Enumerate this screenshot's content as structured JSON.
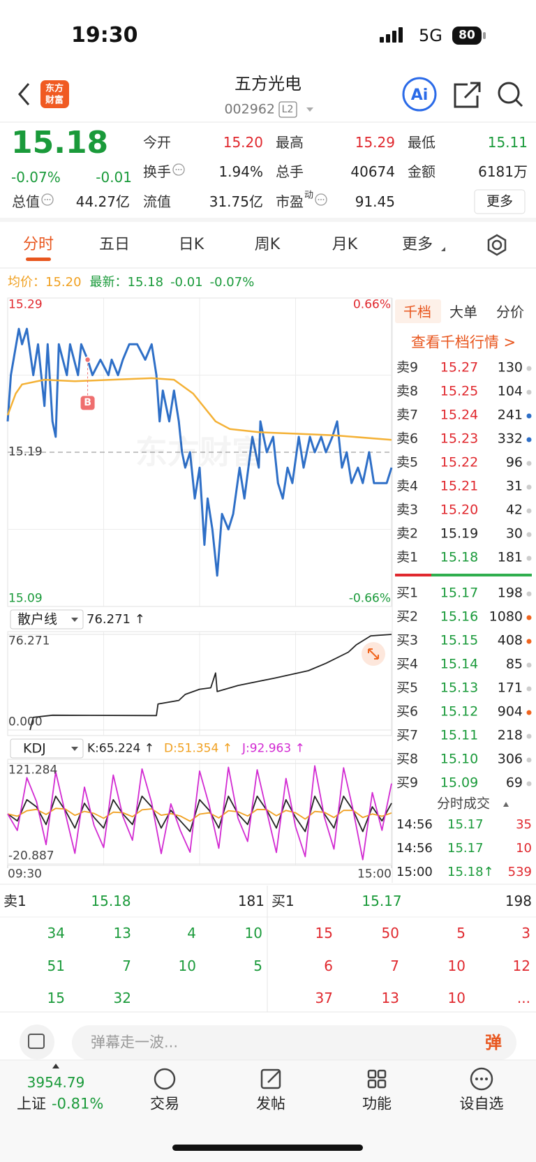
{
  "status_bar": {
    "time": "19:30",
    "network": "5G",
    "battery": "80"
  },
  "header": {
    "logo": [
      "东方",
      "财富"
    ],
    "title": "五方光电",
    "code": "002962",
    "level": "L2"
  },
  "quote": {
    "price": "15.18",
    "change_pct": "-0.07%",
    "change": "-0.01",
    "more": "更多",
    "stats": [
      {
        "label": "今开",
        "value": "15.20",
        "color": "#e0282e"
      },
      {
        "label": "最高",
        "value": "15.29",
        "color": "#e0282e"
      },
      {
        "label": "最低",
        "value": "15.11",
        "color": "#1a9a3a"
      },
      {
        "label": "换手",
        "value": "1.94%",
        "color": "#222222"
      },
      {
        "label": "总手",
        "value": "40674",
        "color": "#222222"
      },
      {
        "label": "金额",
        "value": "6181万",
        "color": "#222222"
      },
      {
        "label": "总值",
        "value": "44.27亿",
        "color": "#222222"
      },
      {
        "label": "流值",
        "value": "31.75亿",
        "color": "#222222"
      },
      {
        "label": "市盈",
        "sup": "动",
        "value": "91.45",
        "color": "#222222"
      }
    ]
  },
  "tabs": {
    "items": [
      "分时",
      "五日",
      "日K",
      "周K",
      "月K",
      "更多"
    ],
    "active": 0
  },
  "legend": {
    "avg_label": "均价：",
    "avg": "15.20",
    "last_label": "最新：",
    "last": "15.18",
    "change": "-0.01",
    "change_pct": "-0.07%"
  },
  "chart_data": [
    {
      "type": "line",
      "watermark": "东方财富",
      "grid": true,
      "xlim": [
        0,
        240
      ],
      "ylim": [
        15.09,
        15.29
      ],
      "yticks": [
        15.09,
        15.19,
        15.29
      ],
      "y2lim": [
        -0.66,
        0.66
      ],
      "y2ticks": [
        {
          "value": -0.66,
          "label": "-0.66%"
        },
        {
          "value": 0.66,
          "label": "0.66%"
        }
      ],
      "series": [
        {
          "color": "#2e6fc7",
          "x": [
            0,
            2,
            7,
            9,
            12,
            16,
            19,
            23,
            25,
            28,
            30,
            32,
            37,
            39,
            44,
            46,
            50,
            53,
            58,
            63,
            65,
            69,
            72,
            76,
            81,
            86,
            90,
            93,
            95,
            97,
            101,
            104,
            107,
            109,
            111,
            114,
            117,
            120,
            123,
            125,
            128,
            131,
            134,
            138,
            141,
            145,
            148,
            153,
            157,
            158,
            162,
            166,
            169,
            172,
            175,
            178,
            182,
            185,
            189,
            192,
            196,
            199,
            203,
            206,
            209,
            212,
            215,
            219,
            222,
            226,
            229,
            234,
            237,
            240
          ],
          "values": [
            15.21,
            15.24,
            15.27,
            15.26,
            15.27,
            15.24,
            15.26,
            15.22,
            15.26,
            15.21,
            15.2,
            15.26,
            15.24,
            15.26,
            15.24,
            15.26,
            15.25,
            15.24,
            15.25,
            15.24,
            15.25,
            15.24,
            15.25,
            15.26,
            15.26,
            15.25,
            15.26,
            15.24,
            15.21,
            15.23,
            15.21,
            15.23,
            15.21,
            15.19,
            15.18,
            15.19,
            15.16,
            15.18,
            15.13,
            15.16,
            15.14,
            15.11,
            15.15,
            15.14,
            15.15,
            15.18,
            15.16,
            15.2,
            15.18,
            15.21,
            15.19,
            15.2,
            15.17,
            15.16,
            15.18,
            15.17,
            15.2,
            15.18,
            15.2,
            15.19,
            15.2,
            15.19,
            15.2,
            15.21,
            15.18,
            15.19,
            15.17,
            15.18,
            15.17,
            15.19,
            15.17,
            15.17,
            15.17,
            15.18
          ]
        },
        {
          "color": "#f4b135",
          "x": [
            0,
            5,
            9,
            23,
            42,
            65,
            90,
            104,
            116,
            130,
            139,
            157,
            181,
            204,
            240
          ],
          "values": [
            15.214,
            15.228,
            15.234,
            15.237,
            15.236,
            15.237,
            15.238,
            15.237,
            15.228,
            15.21,
            15.205,
            15.203,
            15.202,
            15.201,
            15.198
          ]
        }
      ],
      "markers": [
        {
          "x": 50,
          "y": 15.25,
          "label": "B",
          "color": "#ef6f6f"
        }
      ]
    },
    {
      "type": "line",
      "indicator": "散户线",
      "readout": "76.271 ↑",
      "xlim": [
        0,
        240
      ],
      "ylim": [
        0,
        76.271
      ],
      "yticks": [
        {
          "value": 0,
          "label": "0.000"
        },
        76.271
      ],
      "series": [
        {
          "color": "#222222",
          "x": [
            14,
            16,
            28,
            93,
            94,
            107,
            111,
            120,
            127,
            130,
            131,
            144,
            167,
            188,
            199,
            213,
            218,
            227,
            240
          ],
          "values": [
            0,
            10.05,
            11.8,
            11.5,
            20.7,
            23.6,
            28.4,
            32.5,
            33.7,
            45.5,
            30.7,
            35.5,
            41.4,
            47.3,
            53.2,
            62.1,
            68,
            75.1,
            76.271
          ]
        }
      ]
    },
    {
      "type": "line",
      "indicator": "KDJ",
      "xlim": [
        0,
        240
      ],
      "xticks": [
        {
          "value": 0,
          "label": "09:30"
        },
        {
          "value": 240,
          "label": "15:00"
        }
      ],
      "ylim": [
        -20.887,
        121.284
      ],
      "yticks": [
        -20.887,
        121.284
      ],
      "x": [
        0,
        6,
        12,
        18,
        24,
        30,
        36,
        42,
        48,
        54,
        60,
        66,
        72,
        78,
        84,
        90,
        96,
        102,
        108,
        114,
        120,
        126,
        132,
        138,
        144,
        150,
        156,
        162,
        168,
        174,
        180,
        186,
        192,
        198,
        204,
        210,
        216,
        222,
        228,
        234,
        240
      ],
      "series": [
        {
          "readout": "K:65.224 ↑",
          "color": "#222222",
          "values": [
            50,
            40,
            70,
            60,
            35,
            75,
            55,
            30,
            65,
            45,
            30,
            70,
            50,
            35,
            75,
            60,
            30,
            55,
            40,
            25,
            70,
            55,
            30,
            75,
            50,
            35,
            75,
            55,
            30,
            70,
            45,
            25,
            75,
            50,
            30,
            75,
            55,
            25,
            60,
            40,
            65.224
          ]
        },
        {
          "readout": "D:51.354 ↑",
          "color": "#f0a020",
          "values": [
            50,
            46.7,
            54.4,
            56.3,
            49.2,
            57.8,
            56.9,
            47.9,
            53.6,
            50.7,
            43.8,
            52.5,
            51.7,
            46.1,
            55.7,
            57.1,
            48.1,
            50.4,
            46.9,
            39.6,
            49.7,
            51.5,
            44.3,
            54.5,
            53,
            47,
            56.3,
            55.9,
            47.3,
            54.9,
            51.6,
            42.7,
            53.5,
            52.3,
            44.9,
            54.9,
            54.9,
            44.9,
            49.9,
            46.6,
            51.354
          ]
        },
        {
          "readout": "J:92.963 ↑",
          "color": "#d22ad2",
          "values": [
            50,
            26.6,
            101.2,
            67.4,
            6.6,
            109.4,
            51.2,
            -5.8,
            87.8,
            33.6,
            2.4,
            105,
            46.6,
            12.8,
            113.6,
            65.8,
            -6.2,
            64.2,
            26.2,
            -4.2,
            110.6,
            62,
            1.4,
            116,
            44,
            11,
            112.4,
            53.2,
            -4.6,
            100.2,
            31.8,
            -10.4,
            118,
            45.4,
            0.2,
            115.2,
            55.2,
            -14.8,
            80.2,
            26.8,
            92.963
          ]
        }
      ]
    }
  ],
  "order_book": {
    "tabs": [
      "千档",
      "大单",
      "分价"
    ],
    "active_tab": 0,
    "link": "查看千档行情 >",
    "asks": [
      {
        "label": "卖9",
        "price": "15.27",
        "volume": 130,
        "price_color": "#e0282e",
        "dot": "#cccccc"
      },
      {
        "label": "卖8",
        "price": "15.25",
        "volume": 104,
        "price_color": "#e0282e",
        "dot": "#cccccc"
      },
      {
        "label": "卖7",
        "price": "15.24",
        "volume": 241,
        "price_color": "#e0282e",
        "dot": "#2e6fc7"
      },
      {
        "label": "卖6",
        "price": "15.23",
        "volume": 332,
        "price_color": "#e0282e",
        "dot": "#2e6fc7"
      },
      {
        "label": "卖5",
        "price": "15.22",
        "volume": 96,
        "price_color": "#e0282e",
        "dot": "#cccccc"
      },
      {
        "label": "卖4",
        "price": "15.21",
        "volume": 31,
        "price_color": "#e0282e",
        "dot": "#cccccc"
      },
      {
        "label": "卖3",
        "price": "15.20",
        "volume": 42,
        "price_color": "#e0282e",
        "dot": "#cccccc"
      },
      {
        "label": "卖2",
        "price": "15.19",
        "volume": 30,
        "price_color": "#222222",
        "dot": "#cccccc"
      },
      {
        "label": "卖1",
        "price": "15.18",
        "volume": 181,
        "price_color": "#1a9a3a",
        "dot": "#cccccc"
      }
    ],
    "bids": [
      {
        "label": "买1",
        "price": "15.17",
        "volume": 198,
        "price_color": "#1a9a3a",
        "dot": "#cccccc"
      },
      {
        "label": "买2",
        "price": "15.16",
        "volume": 1080,
        "price_color": "#1a9a3a",
        "dot": "#f0641e"
      },
      {
        "label": "买3",
        "price": "15.15",
        "volume": 408,
        "price_color": "#1a9a3a",
        "dot": "#f0641e"
      },
      {
        "label": "买4",
        "price": "15.14",
        "volume": 85,
        "price_color": "#1a9a3a",
        "dot": "#cccccc"
      },
      {
        "label": "买5",
        "price": "15.13",
        "volume": 171,
        "price_color": "#1a9a3a",
        "dot": "#cccccc"
      },
      {
        "label": "买6",
        "price": "15.12",
        "volume": 904,
        "price_color": "#1a9a3a",
        "dot": "#f0641e"
      },
      {
        "label": "买7",
        "price": "15.11",
        "volume": 218,
        "price_color": "#1a9a3a",
        "dot": "#cccccc"
      },
      {
        "label": "买8",
        "price": "15.10",
        "volume": 306,
        "price_color": "#1a9a3a",
        "dot": "#cccccc"
      },
      {
        "label": "买9",
        "price": "15.09",
        "volume": 69,
        "price_color": "#1a9a3a",
        "dot": "#cccccc"
      }
    ],
    "trades_title": "分时成交",
    "trades": [
      {
        "time": "14:56",
        "price": "15.17",
        "volume": 35
      },
      {
        "time": "14:56",
        "price": "15.17",
        "volume": 10
      },
      {
        "time": "15:00",
        "price": "15.18↑",
        "volume": 539
      }
    ]
  },
  "tick_table": {
    "sell": {
      "label": "卖1",
      "price": "15.18",
      "volume": 181,
      "rows": [
        [
          34,
          13,
          4,
          10
        ],
        [
          51,
          7,
          10,
          5
        ],
        [
          15,
          32
        ]
      ]
    },
    "buy": {
      "label": "买1",
      "price": "15.17",
      "volume": 198,
      "rows": [
        [
          15,
          50,
          5,
          3
        ],
        [
          6,
          7,
          10,
          12
        ],
        [
          37,
          13,
          10,
          "..."
        ]
      ]
    }
  },
  "comment": {
    "placeholder": "弹幕走一波...",
    "button": "弹"
  },
  "nav": {
    "index_value": "3954.79",
    "index_name": "上证",
    "index_change": "-0.81%",
    "items": [
      "交易",
      "发帖",
      "功能",
      "设自选"
    ]
  }
}
